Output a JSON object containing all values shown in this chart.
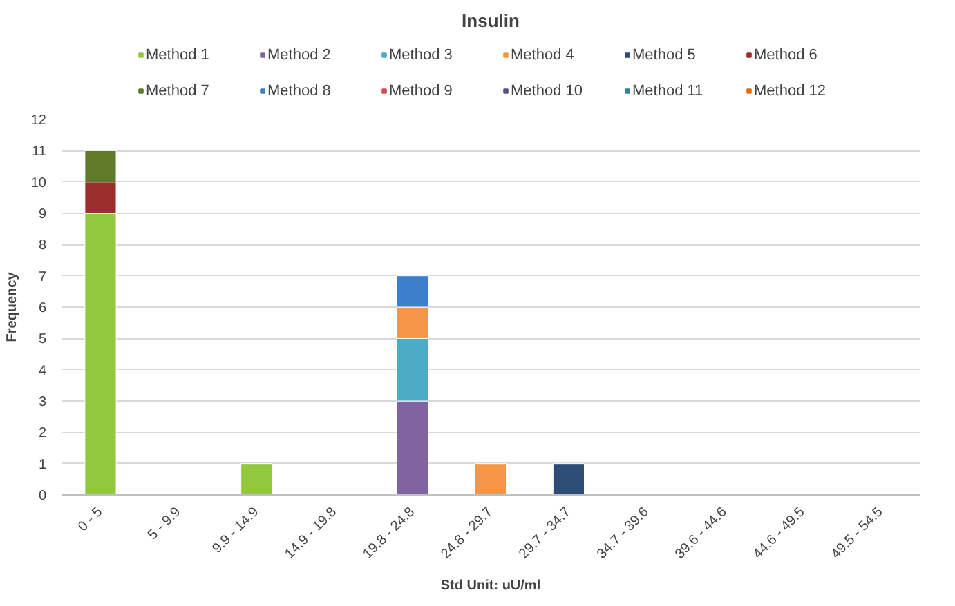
{
  "chart_data": {
    "type": "bar",
    "stacked": true,
    "title": "Insulin",
    "xlabel": "Std Unit: uU/ml",
    "ylabel": "Frequency",
    "categories": [
      "0 - 5",
      "5 - 9.9",
      "9.9 - 14.9",
      "14.9 - 19.8",
      "19.8 - 24.8",
      "24.8 - 29.7",
      "29.7 - 34.7",
      "34.7 - 39.6",
      "39.6 - 44.6",
      "44.6 - 49.5",
      "49.5 - 54.5"
    ],
    "series": [
      {
        "name": "Method 1",
        "color": "#92c83e",
        "values": [
          9,
          null,
          1,
          null,
          null,
          null,
          null,
          null,
          null,
          null,
          null
        ]
      },
      {
        "name": "Method 2",
        "color": "#8064a2",
        "values": [
          null,
          null,
          null,
          null,
          3,
          null,
          null,
          null,
          null,
          null,
          null
        ]
      },
      {
        "name": "Method 3",
        "color": "#4bacc6",
        "values": [
          null,
          null,
          null,
          null,
          2,
          null,
          null,
          null,
          null,
          null,
          null
        ]
      },
      {
        "name": "Method 4",
        "color": "#f79646",
        "values": [
          null,
          null,
          null,
          null,
          1,
          1,
          null,
          null,
          null,
          null,
          null
        ]
      },
      {
        "name": "Method 5",
        "color": "#2c4d75",
        "values": [
          null,
          null,
          null,
          null,
          null,
          null,
          1,
          null,
          null,
          null,
          null
        ]
      },
      {
        "name": "Method 6",
        "color": "#9b2d2a",
        "values": [
          1,
          null,
          null,
          null,
          null,
          null,
          null,
          null,
          null,
          null,
          null
        ]
      },
      {
        "name": "Method 7",
        "color": "#5f7b2b",
        "values": [
          1,
          null,
          null,
          null,
          null,
          null,
          null,
          null,
          null,
          null,
          null
        ]
      },
      {
        "name": "Method 8",
        "color": "#3e7fcc",
        "values": [
          null,
          null,
          null,
          null,
          1,
          null,
          null,
          null,
          null,
          null,
          null
        ]
      },
      {
        "name": "Method 9",
        "color": "#d24c4c",
        "values": [
          null,
          null,
          null,
          null,
          null,
          null,
          null,
          null,
          null,
          null,
          null
        ]
      },
      {
        "name": "Method 10",
        "color": "#5f4b8b",
        "values": [
          null,
          null,
          null,
          null,
          null,
          null,
          null,
          null,
          null,
          null,
          null
        ]
      },
      {
        "name": "Method 11",
        "color": "#31859c",
        "values": [
          null,
          null,
          null,
          null,
          null,
          null,
          null,
          null,
          null,
          null,
          null
        ]
      },
      {
        "name": "Method 12",
        "color": "#e46c0a",
        "values": [
          null,
          null,
          null,
          null,
          null,
          null,
          null,
          null,
          null,
          null,
          null
        ]
      }
    ],
    "ylim": [
      0,
      12
    ],
    "yticks": [
      0,
      1,
      2,
      3,
      4,
      5,
      6,
      7,
      8,
      9,
      10,
      11,
      12
    ],
    "grid": "y",
    "legend": "top"
  }
}
